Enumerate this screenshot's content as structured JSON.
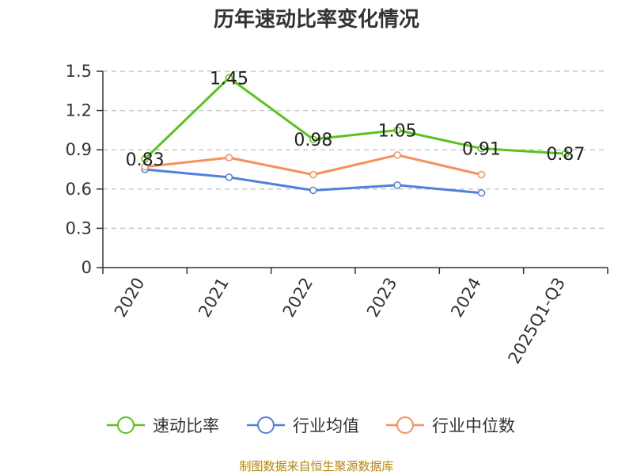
{
  "chart_data": {
    "type": "line",
    "title": "历年速动比率变化情况",
    "categories": [
      "2020",
      "2021",
      "2022",
      "2023",
      "2024",
      "2025Q1-Q3"
    ],
    "ylim": [
      0,
      1.5
    ],
    "yticks": [
      "0",
      "0.3",
      "0.6",
      "0.9",
      "1.2",
      "1.5"
    ],
    "grid": true,
    "legend_position": "bottom",
    "series": [
      {
        "name": "速动比率",
        "color": "#5ac31e",
        "values": [
          0.83,
          1.45,
          0.98,
          1.05,
          0.91,
          0.87
        ],
        "labels": [
          "0.83",
          "1.45",
          "0.98",
          "1.05",
          "0.91",
          "0.87"
        ]
      },
      {
        "name": "行业均值",
        "color": "#4e80dc",
        "values": [
          0.75,
          0.69,
          0.59,
          0.63,
          0.57,
          null
        ]
      },
      {
        "name": "行业中位数",
        "color": "#f7905a",
        "values": [
          0.77,
          0.84,
          0.71,
          0.86,
          0.71,
          null
        ]
      }
    ]
  },
  "source": "制图数据来自恒生聚源数据库"
}
